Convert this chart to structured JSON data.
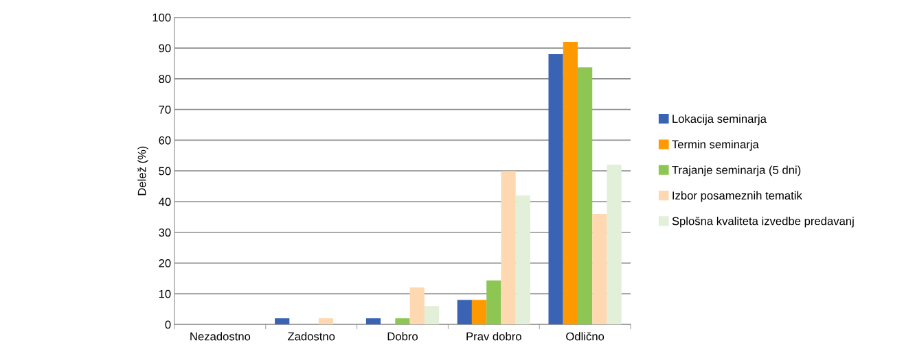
{
  "chart_data": {
    "type": "bar",
    "ylabel": "Delež (%)",
    "categories": [
      "Nezadostno",
      "Zadostno",
      "Dobro",
      "Prav dobro",
      "Odlično"
    ],
    "series": [
      {
        "name": "Lokacija seminarja",
        "color": "#3a64b3",
        "values": [
          0,
          2,
          2,
          8,
          88
        ]
      },
      {
        "name": "Termin seminarja",
        "color": "#ff9900",
        "values": [
          0,
          0,
          0,
          8,
          92
        ]
      },
      {
        "name": "Trajanje seminarja (5 dni)",
        "color": "#8dc653",
        "values": [
          0,
          0,
          2,
          14.3,
          83.7
        ]
      },
      {
        "name": "Izbor posameznih tematik",
        "color": "#fed8b0",
        "values": [
          0,
          2,
          12,
          50,
          36
        ]
      },
      {
        "name": "Splošna kvaliteta izvedbe predavanj",
        "color": "#e2efd9",
        "values": [
          0,
          0,
          6,
          42,
          52
        ]
      }
    ],
    "ylim": [
      0,
      100
    ],
    "yticks": [
      0,
      10,
      20,
      30,
      40,
      50,
      60,
      70,
      80,
      90,
      100
    ],
    "grid": "y",
    "legend": "right"
  }
}
